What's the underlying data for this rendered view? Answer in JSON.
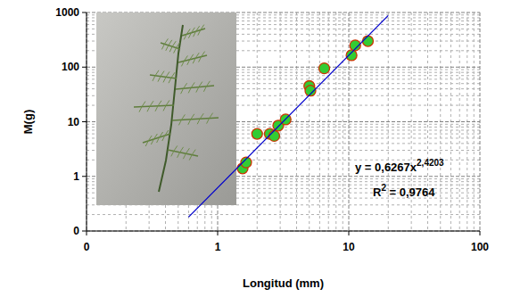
{
  "chart_data": {
    "type": "scatter",
    "x_label": "Longitud (mm)",
    "y_label": "M(g)",
    "log": true,
    "grid": true,
    "xlim": [
      0.1,
      100
    ],
    "ylim": [
      0.1,
      1000
    ],
    "xticks": [
      {
        "value": 0.1,
        "label": "0"
      },
      1,
      10,
      100
    ],
    "yticks": [
      {
        "value": 0.1,
        "label": "0"
      },
      1,
      10,
      100,
      1000
    ],
    "series": [
      {
        "type": "scatter",
        "color": "#33cc33",
        "marker": "circle",
        "x": [
          1.55,
          1.65,
          2.0,
          2.5,
          2.7,
          2.9,
          3.3,
          5.0,
          5.1,
          6.5,
          10.5,
          11.2,
          14
        ],
        "values": [
          1.4,
          1.8,
          6.0,
          6.0,
          5.5,
          8.5,
          11,
          45,
          37,
          95,
          165,
          250,
          300
        ]
      },
      {
        "type": "line",
        "color": "#0000cc",
        "line_style": "solid",
        "x": [
          0.6,
          20
        ],
        "values": [
          0.18,
          882
        ]
      }
    ],
    "annotations": [
      {
        "parts": [
          {
            "text": "y = 0,6267x"
          },
          {
            "text": "2,4203",
            "sup": true
          }
        ]
      },
      {
        "parts": [
          {
            "text": "R"
          },
          {
            "text": "2",
            "sup": true
          },
          {
            "text": " = 0,9764"
          }
        ]
      }
    ]
  }
}
